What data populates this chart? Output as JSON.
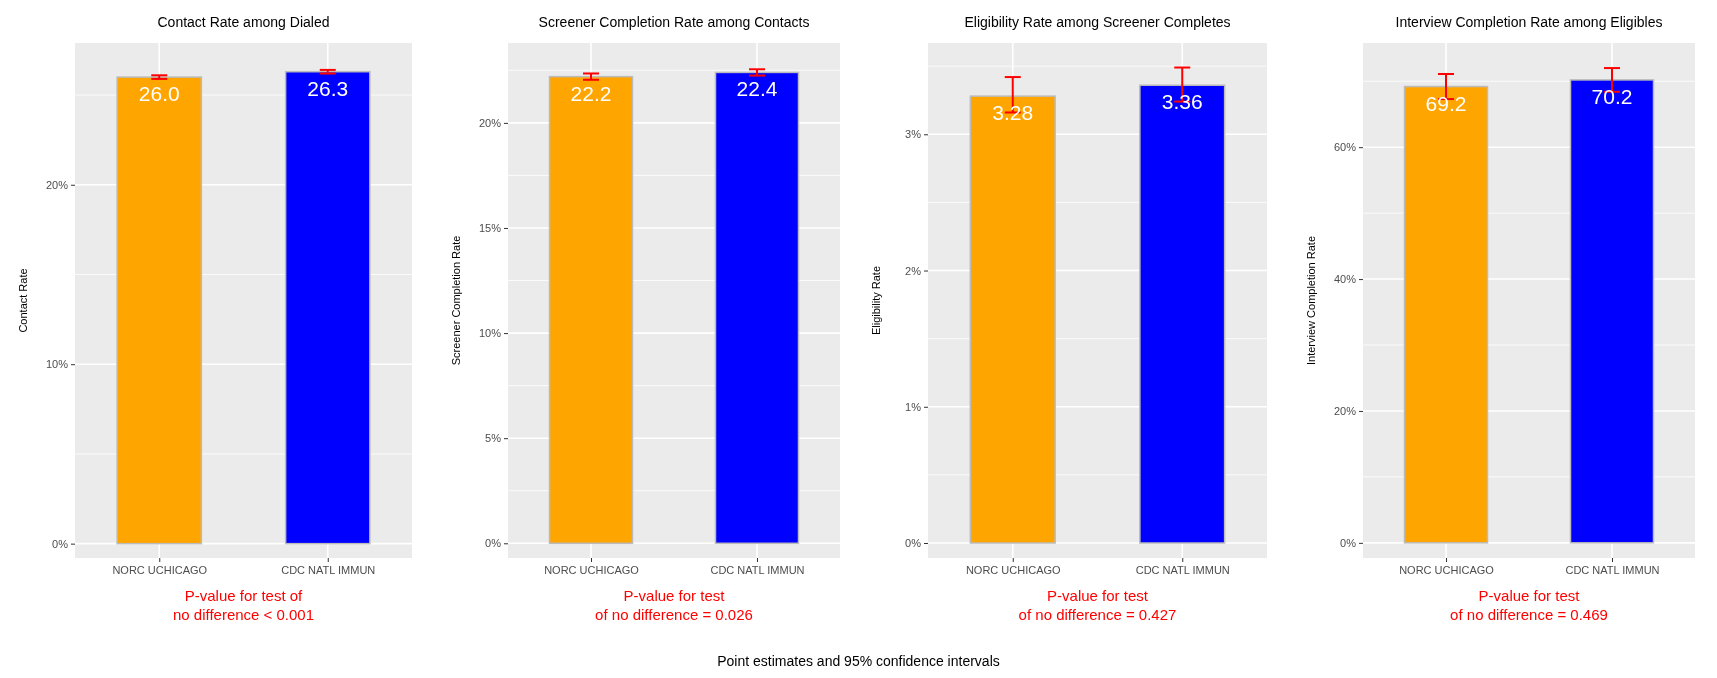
{
  "chart_data": [
    {
      "type": "bar",
      "title": "Contact Rate among Dialed",
      "ylabel": "Contact Rate",
      "categories": [
        "NORC UCHICAGO",
        "CDC NATL IMMUN"
      ],
      "values": [
        26.0,
        26.3
      ],
      "colors": [
        "#ffa500",
        "#0000ff"
      ],
      "errors": [
        0.1,
        0.1
      ],
      "value_labels": [
        "26.0",
        "26.3"
      ],
      "ylim": [
        -0.8,
        27.9
      ],
      "yticks": [
        {
          "value": 0,
          "label": "0%"
        },
        {
          "value": 10,
          "label": "10%"
        },
        {
          "value": 20,
          "label": "20%"
        }
      ],
      "grid": true,
      "annotations": [
        "P-value for test of\nno difference < 0.001"
      ]
    },
    {
      "type": "bar",
      "title": "Screener Completion Rate among Contacts",
      "ylabel": "Screener Completion Rate",
      "categories": [
        "NORC UCHICAGO",
        "CDC NATL IMMUN"
      ],
      "values": [
        22.2,
        22.4
      ],
      "colors": [
        "#ffa500",
        "#0000ff"
      ],
      "errors": [
        0.15,
        0.15
      ],
      "value_labels": [
        "22.2",
        "22.4"
      ],
      "ylim": [
        -0.7,
        23.8
      ],
      "yticks": [
        {
          "value": 0,
          "label": "0%"
        },
        {
          "value": 5,
          "label": "5%"
        },
        {
          "value": 10,
          "label": "10%"
        },
        {
          "value": 15,
          "label": "15%"
        },
        {
          "value": 20,
          "label": "20%"
        }
      ],
      "grid": true,
      "annotations": [
        "P-value for test\nof no difference = 0.026"
      ]
    },
    {
      "type": "bar",
      "title": "Eligibility Rate among Screener Completes",
      "ylabel": "Eligibility Rate",
      "categories": [
        "NORC UCHICAGO",
        "CDC NATL IMMUN"
      ],
      "values": [
        3.28,
        3.36
      ],
      "colors": [
        "#ffa500",
        "#0000ff"
      ],
      "errors": [
        [
          3.16,
          3.42
        ],
        [
          3.24,
          3.49
        ]
      ],
      "value_labels": [
        "3.28",
        "3.36"
      ],
      "ylim": [
        -0.11,
        3.67
      ],
      "yticks": [
        {
          "value": 0,
          "label": "0%"
        },
        {
          "value": 1,
          "label": "1%"
        },
        {
          "value": 2,
          "label": "2%"
        },
        {
          "value": 3,
          "label": "3%"
        }
      ],
      "grid": true,
      "annotations": [
        "P-value for test\nof no difference = 0.427"
      ]
    },
    {
      "type": "bar",
      "title": "Interview Completion Rate among Eligibles",
      "ylabel": "Interview Completion Rate",
      "categories": [
        "NORC UCHICAGO",
        "CDC NATL IMMUN"
      ],
      "values": [
        69.2,
        70.2
      ],
      "colors": [
        "#ffa500",
        "#0000ff"
      ],
      "errors": [
        [
          67.3,
          71.1
        ],
        [
          68.4,
          72.0
        ]
      ],
      "value_labels": [
        "69.2",
        "70.2"
      ],
      "ylim": [
        -2.3,
        75.8
      ],
      "yticks": [
        {
          "value": 0,
          "label": "0%"
        },
        {
          "value": 20,
          "label": "20%"
        },
        {
          "value": 40,
          "label": "40%"
        },
        {
          "value": 60,
          "label": "60%"
        }
      ],
      "grid": true,
      "annotations": [
        "P-value for test\nof no difference = 0.469",
        "Point estimates and 95% confidence intervals"
      ]
    }
  ]
}
